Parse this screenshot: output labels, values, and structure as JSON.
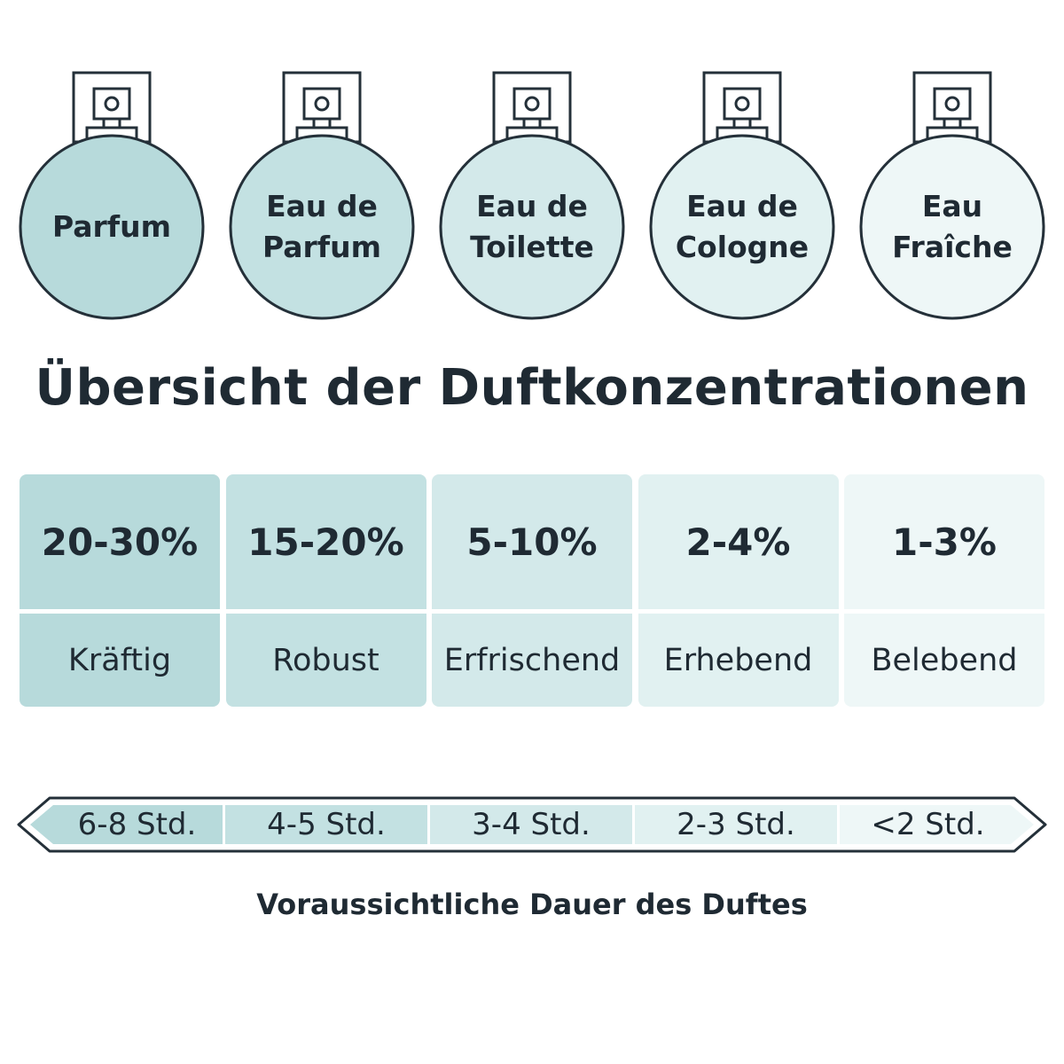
{
  "title": "Übersicht der Duftkonzentrationen",
  "footer": "Voraussichtliche Dauer des Duftes",
  "colors": {
    "ink": "#1f2a33",
    "bottle_outline": "#243039",
    "shades": [
      "#b7dadb",
      "#c3e1e2",
      "#d3e9ea",
      "#e1f1f1",
      "#eef7f7"
    ]
  },
  "bottles": [
    {
      "label": "Parfum",
      "icon": "perfume-bottle-icon"
    },
    {
      "label": "Eau de\nParfum",
      "icon": "perfume-bottle-icon"
    },
    {
      "label": "Eau de\nToilette",
      "icon": "perfume-bottle-icon"
    },
    {
      "label": "Eau de\nCologne",
      "icon": "perfume-bottle-icon"
    },
    {
      "label": "Eau\nFraîche",
      "icon": "perfume-bottle-icon"
    }
  ],
  "concentrations": [
    {
      "percent": "20-30%",
      "character": "Kräftig"
    },
    {
      "percent": "15-20%",
      "character": "Robust"
    },
    {
      "percent": "5-10%",
      "character": "Erfrischend"
    },
    {
      "percent": "2-4%",
      "character": "Erhebend"
    },
    {
      "percent": "1-3%",
      "character": "Belebend"
    }
  ],
  "durations": [
    "6-8 Std.",
    "4-5 Std.",
    "3-4 Std.",
    "2-3 Std.",
    "<2 Std."
  ]
}
